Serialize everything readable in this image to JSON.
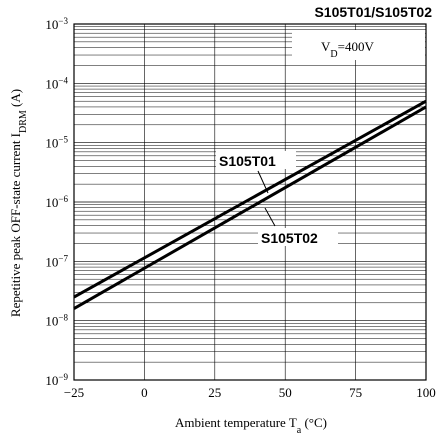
{
  "chart_data": {
    "type": "line",
    "title": "S105T01/S105T02",
    "xlabel": "Ambient temperature T",
    "xlabel_sub": "a",
    "xlabel_unit": " (°C)",
    "ylabel": "Repetitive peak OFF-state current I",
    "ylabel_sub": "DRM",
    "ylabel_unit": " (A)",
    "condition": {
      "main": "V",
      "sub": "D",
      "rest": "=400V"
    },
    "xlim": [
      -25,
      100
    ],
    "xticks": [
      -25,
      0,
      25,
      50,
      75,
      100
    ],
    "ylim": [
      1e-09,
      0.001
    ],
    "yscale": "log",
    "yticks": [
      {
        "value": 1e-09,
        "base": "10",
        "exp": "−9"
      },
      {
        "value": 1e-08,
        "base": "10",
        "exp": "−8"
      },
      {
        "value": 1e-07,
        "base": "10",
        "exp": "−7"
      },
      {
        "value": 1e-06,
        "base": "10",
        "exp": "−6"
      },
      {
        "value": 1e-05,
        "base": "10",
        "exp": "−5"
      },
      {
        "value": 0.0001,
        "base": "10",
        "exp": "−4"
      },
      {
        "value": 0.001,
        "base": "10",
        "exp": "−3"
      }
    ],
    "grid": true,
    "series": [
      {
        "name": "S105T01",
        "x": [
          -25,
          100
        ],
        "y": [
          2.5e-08,
          5e-05
        ]
      },
      {
        "name": "S105T02",
        "x": [
          -25,
          100
        ],
        "y": [
          1.6e-08,
          4e-05
        ]
      }
    ]
  }
}
